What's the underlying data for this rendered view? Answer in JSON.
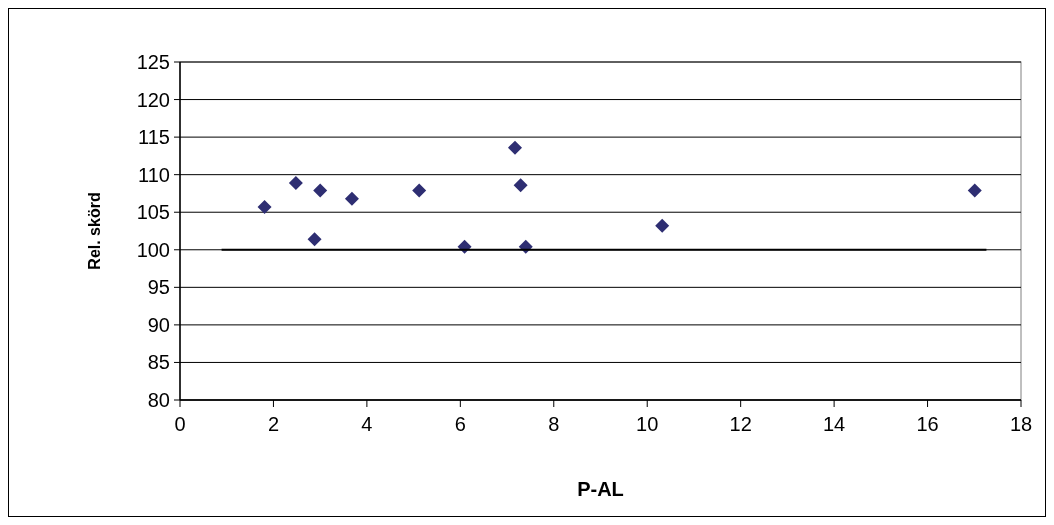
{
  "chart_data": {
    "type": "scatter",
    "xlabel": "P-AL",
    "ylabel": "Rel. skörd",
    "xlim": [
      0,
      18
    ],
    "xticks": [
      0,
      2,
      4,
      6,
      8,
      10,
      12,
      14,
      16,
      18
    ],
    "ylim": [
      80,
      125
    ],
    "yticks": [
      80,
      85,
      90,
      95,
      100,
      105,
      110,
      115,
      120,
      125
    ],
    "grid": "y",
    "series": [
      {
        "marker": "diamond",
        "color": "#2e2e72",
        "x": [
          1.81,
          2.48,
          2.88,
          3.0,
          3.68,
          5.12,
          6.09,
          7.17,
          7.29,
          7.4,
          10.32,
          17.01
        ],
        "values": [
          105.7,
          108.9,
          101.4,
          107.9,
          106.8,
          107.9,
          100.4,
          113.6,
          108.6,
          100.4,
          103.2,
          107.9
        ]
      },
      {
        "type": "line",
        "marker": "none",
        "line_style": "solid",
        "color": "#000000",
        "x": [
          0.89,
          17.26
        ],
        "values": [
          100,
          100
        ]
      }
    ]
  }
}
